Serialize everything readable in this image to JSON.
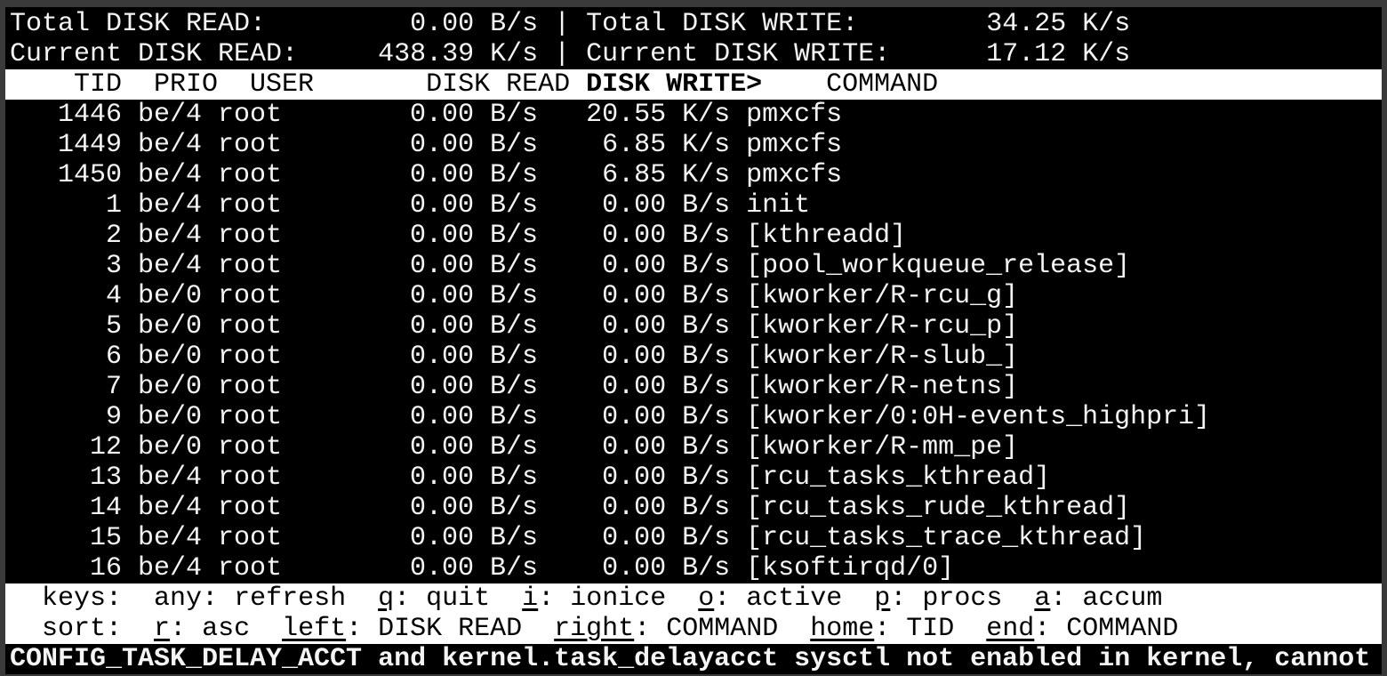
{
  "summary": {
    "total_read_label": "Total DISK READ:",
    "total_read_value": "0.00 B/s",
    "total_write_label": "Total DISK WRITE:",
    "total_write_value": "34.25 K/s",
    "current_read_label": "Current DISK READ:",
    "current_read_value": "438.39 K/s",
    "current_write_label": "Current DISK WRITE:",
    "current_write_value": "17.12 K/s",
    "separator": "|"
  },
  "columns": {
    "tid": "TID",
    "prio": "PRIO",
    "user": "USER",
    "disk_read": "DISK READ",
    "disk_write": "DISK WRITE>",
    "command": "COMMAND"
  },
  "rows": [
    {
      "tid": "1446",
      "prio": "be/4",
      "user": "root",
      "read": "0.00 B/s",
      "write": "20.55 K/s",
      "command": "pmxcfs"
    },
    {
      "tid": "1449",
      "prio": "be/4",
      "user": "root",
      "read": "0.00 B/s",
      "write": "6.85 K/s",
      "command": "pmxcfs"
    },
    {
      "tid": "1450",
      "prio": "be/4",
      "user": "root",
      "read": "0.00 B/s",
      "write": "6.85 K/s",
      "command": "pmxcfs"
    },
    {
      "tid": "1",
      "prio": "be/4",
      "user": "root",
      "read": "0.00 B/s",
      "write": "0.00 B/s",
      "command": "init"
    },
    {
      "tid": "2",
      "prio": "be/4",
      "user": "root",
      "read": "0.00 B/s",
      "write": "0.00 B/s",
      "command": "[kthreadd]"
    },
    {
      "tid": "3",
      "prio": "be/4",
      "user": "root",
      "read": "0.00 B/s",
      "write": "0.00 B/s",
      "command": "[pool_workqueue_release]"
    },
    {
      "tid": "4",
      "prio": "be/0",
      "user": "root",
      "read": "0.00 B/s",
      "write": "0.00 B/s",
      "command": "[kworker/R-rcu_g]"
    },
    {
      "tid": "5",
      "prio": "be/0",
      "user": "root",
      "read": "0.00 B/s",
      "write": "0.00 B/s",
      "command": "[kworker/R-rcu_p]"
    },
    {
      "tid": "6",
      "prio": "be/0",
      "user": "root",
      "read": "0.00 B/s",
      "write": "0.00 B/s",
      "command": "[kworker/R-slub_]"
    },
    {
      "tid": "7",
      "prio": "be/0",
      "user": "root",
      "read": "0.00 B/s",
      "write": "0.00 B/s",
      "command": "[kworker/R-netns]"
    },
    {
      "tid": "9",
      "prio": "be/0",
      "user": "root",
      "read": "0.00 B/s",
      "write": "0.00 B/s",
      "command": "[kworker/0:0H-events_highpri]"
    },
    {
      "tid": "12",
      "prio": "be/0",
      "user": "root",
      "read": "0.00 B/s",
      "write": "0.00 B/s",
      "command": "[kworker/R-mm_pe]"
    },
    {
      "tid": "13",
      "prio": "be/4",
      "user": "root",
      "read": "0.00 B/s",
      "write": "0.00 B/s",
      "command": "[rcu_tasks_kthread]"
    },
    {
      "tid": "14",
      "prio": "be/4",
      "user": "root",
      "read": "0.00 B/s",
      "write": "0.00 B/s",
      "command": "[rcu_tasks_rude_kthread]"
    },
    {
      "tid": "15",
      "prio": "be/4",
      "user": "root",
      "read": "0.00 B/s",
      "write": "0.00 B/s",
      "command": "[rcu_tasks_trace_kthread]"
    },
    {
      "tid": "16",
      "prio": "be/4",
      "user": "root",
      "read": "0.00 B/s",
      "write": "0.00 B/s",
      "command": "[ksoftirqd/0]"
    }
  ],
  "keys": {
    "label": "keys:",
    "items": [
      {
        "key": "any",
        "text": ": refresh",
        "underline": false
      },
      {
        "key": "q",
        "text": ": quit",
        "underline": true
      },
      {
        "key": "i",
        "text": ": ionice",
        "underline": true
      },
      {
        "key": "o",
        "text": ": active",
        "underline": true
      },
      {
        "key": "p",
        "text": ": procs",
        "underline": true
      },
      {
        "key": "a",
        "text": ": accum",
        "underline": true
      }
    ]
  },
  "sort": {
    "label": "sort:",
    "items": [
      {
        "key": "r",
        "text": ": asc",
        "underline": true
      },
      {
        "key": "left",
        "text": ": DISK READ",
        "underline": true
      },
      {
        "key": "right",
        "text": ": COMMAND",
        "underline": true
      },
      {
        "key": "home",
        "text": ": TID",
        "underline": true
      },
      {
        "key": "end",
        "text": ": COMMAND",
        "underline": true
      }
    ]
  },
  "status_message": "CONFIG_TASK_DELAY_ACCT and kernel.task_delayacct sysctl not enabled in kernel, cannot",
  "colors": {
    "background": "#000000",
    "foreground": "#f4f4f4",
    "inverse_background": "#ffffff",
    "frame": "#3a3a3a"
  }
}
